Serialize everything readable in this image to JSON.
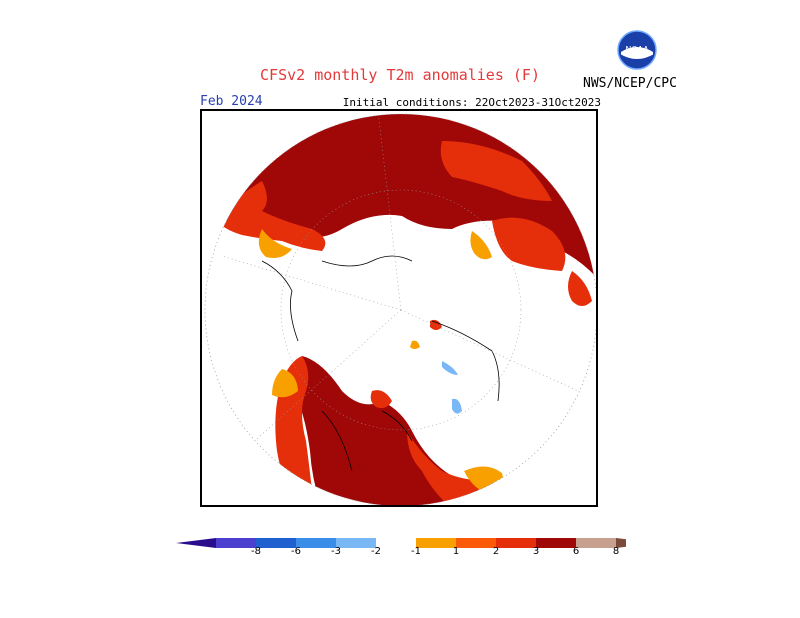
{
  "header": {
    "title": "CFSv2 monthly T2m anomalies (F)",
    "month": "Feb 2024",
    "initial_conditions": "Initial conditions: 22Oct2023-31Oct2023",
    "org": "NWS/NCEP/CPC",
    "logo_text": "NOAA"
  },
  "colorbar": {
    "ticks": [
      "-8",
      "-6",
      "-3",
      "-2",
      "-1",
      "1",
      "2",
      "3",
      "6",
      "8"
    ],
    "colors": [
      "#2a0d8c",
      "#4b3fd0",
      "#1f5fcf",
      "#3b8ee8",
      "#7ab8f5",
      "#ffffff",
      "#f8a000",
      "#fb5a08",
      "#e52e0a",
      "#a00808",
      "#c8a090",
      "#7a4a3a"
    ]
  },
  "colors": {
    "dark_red": "#a00808",
    "red": "#e52e0a",
    "orange_red": "#fb5a08",
    "orange": "#f8a000",
    "light_blue": "#7ab8f5"
  }
}
